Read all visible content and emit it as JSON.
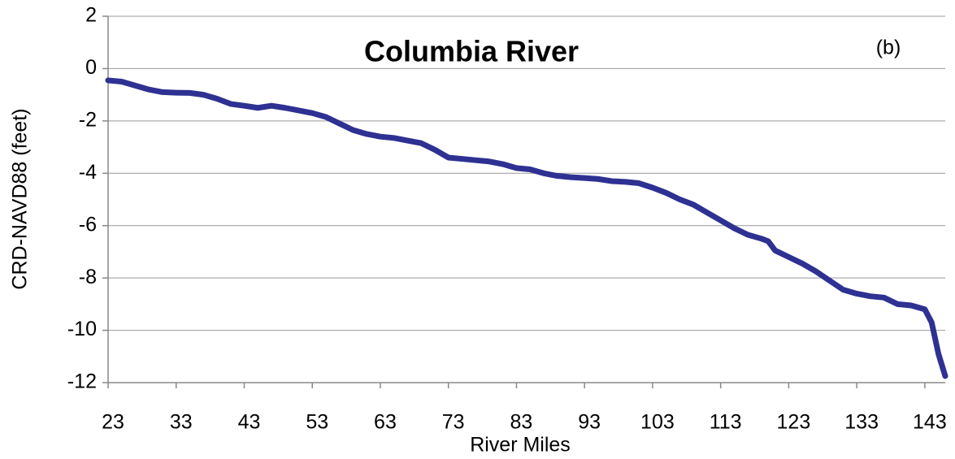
{
  "chart_data": {
    "type": "line",
    "title": "Columbia River",
    "annotation": "(b)",
    "x_label": "River Miles",
    "y_label": "CRD-NAVD88 (feet)",
    "x": [
      23,
      25,
      27,
      29,
      31,
      33,
      35,
      37,
      39,
      41,
      43,
      45,
      47,
      49,
      51,
      53,
      55,
      57,
      59,
      61,
      63,
      65,
      67,
      69,
      71,
      73,
      75,
      77,
      79,
      81,
      83,
      85,
      87,
      89,
      91,
      93,
      95,
      97,
      99,
      101,
      103,
      105,
      107,
      109,
      111,
      113,
      115,
      117,
      119,
      120,
      121,
      123,
      125,
      127,
      129,
      131,
      133,
      135,
      137,
      139,
      141,
      143,
      144,
      145,
      146
    ],
    "series": [
      {
        "name": "Columbia River",
        "color": "#2e3192",
        "values": [
          -0.45,
          -0.5,
          -0.65,
          -0.8,
          -0.9,
          -0.92,
          -0.93,
          -1.0,
          -1.15,
          -1.35,
          -1.42,
          -1.5,
          -1.42,
          -1.5,
          -1.6,
          -1.7,
          -1.85,
          -2.1,
          -2.35,
          -2.5,
          -2.6,
          -2.65,
          -2.75,
          -2.85,
          -3.1,
          -3.4,
          -3.45,
          -3.5,
          -3.55,
          -3.65,
          -3.8,
          -3.85,
          -4.0,
          -4.1,
          -4.15,
          -4.18,
          -4.22,
          -4.3,
          -4.33,
          -4.38,
          -4.55,
          -4.75,
          -5.0,
          -5.2,
          -5.5,
          -5.8,
          -6.1,
          -6.35,
          -6.5,
          -6.6,
          -6.95,
          -7.2,
          -7.45,
          -7.75,
          -8.1,
          -8.45,
          -8.6,
          -8.7,
          -8.75,
          -9.0,
          -9.05,
          -9.2,
          -9.7,
          -10.9,
          -11.75
        ]
      }
    ],
    "xlim": [
      23,
      146
    ],
    "xticks": [
      23,
      33,
      43,
      53,
      63,
      73,
      83,
      93,
      103,
      113,
      123,
      133,
      143
    ],
    "ylim": [
      -12,
      2
    ],
    "yticks": [
      -12,
      -10,
      -8,
      -6,
      -4,
      -2,
      0,
      2
    ],
    "grid": true
  }
}
